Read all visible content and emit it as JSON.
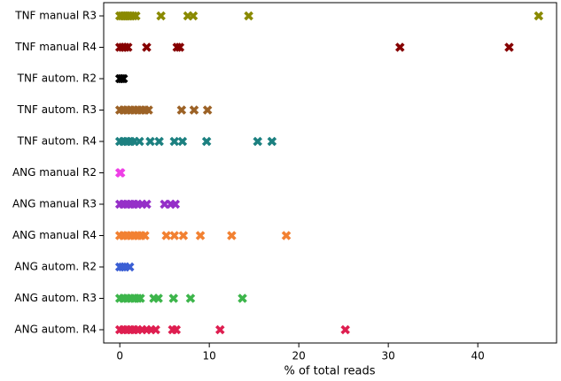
{
  "chart_data": {
    "type": "strip",
    "xlabel": "% of total reads",
    "xlim": [
      -1.8,
      48.8
    ],
    "xticks": [
      0,
      10,
      20,
      30,
      40
    ],
    "series": [
      {
        "name": "TNF manual R3",
        "color": "#8a8a00",
        "values": [
          0,
          0.2,
          0.4,
          0.6,
          0.8,
          1.0,
          1.2,
          1.5,
          1.8,
          4.6,
          7.6,
          8.2,
          14.4,
          46.8
        ]
      },
      {
        "name": "TNF manual R4",
        "color": "#860000",
        "values": [
          0,
          0.3,
          0.6,
          0.9,
          3.0,
          6.4,
          6.7,
          31.3,
          43.5
        ]
      },
      {
        "name": "TNF autom. R2",
        "color": "#000000",
        "values": [
          0,
          0.2,
          0.4
        ]
      },
      {
        "name": "TNF autom. R3",
        "color": "#9c6226",
        "values": [
          0,
          0.4,
          0.8,
          1.2,
          1.6,
          2.0,
          2.4,
          2.8,
          3.2,
          6.9,
          8.3,
          9.8
        ]
      },
      {
        "name": "TNF autom. R4",
        "color": "#1c8080",
        "values": [
          0,
          0.4,
          0.8,
          1.2,
          1.6,
          2.2,
          3.4,
          4.4,
          6.1,
          7.0,
          9.7,
          15.4,
          17.0
        ]
      },
      {
        "name": "ANG manual R2",
        "color": "#ee3fe6",
        "values": [
          0,
          0.1
        ]
      },
      {
        "name": "ANG manual R3",
        "color": "#9530c8",
        "values": [
          0,
          0.4,
          0.8,
          1.2,
          1.6,
          2.0,
          2.5,
          3.0,
          5.0,
          5.7,
          6.2
        ]
      },
      {
        "name": "ANG manual R4",
        "color": "#f28132",
        "values": [
          0,
          0.4,
          0.8,
          1.2,
          1.6,
          2.0,
          2.4,
          2.8,
          5.2,
          6.1,
          7.1,
          9.0,
          12.5,
          18.6
        ]
      },
      {
        "name": "ANG autom. R2",
        "color": "#3b5fd4",
        "values": [
          0,
          0.3,
          0.6,
          1.1
        ]
      },
      {
        "name": "ANG autom. R3",
        "color": "#3db54b",
        "values": [
          0,
          0.4,
          0.8,
          1.2,
          1.6,
          2.0,
          2.3,
          3.8,
          4.3,
          6.0,
          7.9,
          13.7
        ]
      },
      {
        "name": "ANG autom. R4",
        "color": "#de1e50",
        "values": [
          0,
          0.4,
          0.8,
          1.2,
          1.6,
          2.0,
          2.5,
          3.0,
          3.5,
          4.0,
          5.9,
          6.3,
          11.2,
          25.2
        ]
      }
    ]
  }
}
